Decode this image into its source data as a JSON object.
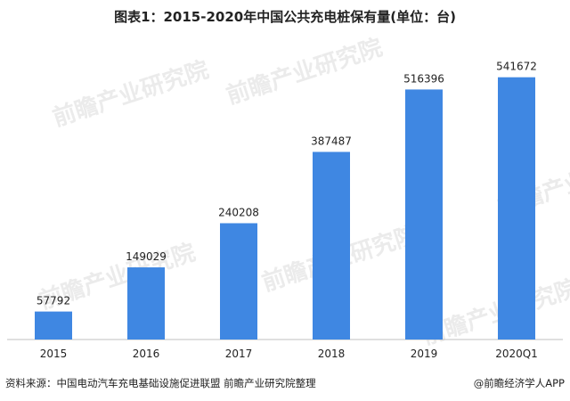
{
  "header": {
    "title": "图表1：2015-2020年中国公共充电桩保有量(单位：台)"
  },
  "watermark": {
    "text": "前瞻产业研究院"
  },
  "footer": {
    "source": "资料来源：中国电动汽车充电基础设施促进联盟 前瞻产业研究院整理",
    "credit": "@前瞻经济学人APP"
  },
  "colors": {
    "bar": "#3f87e2",
    "axis": "#bfbfbf",
    "label": "#222222"
  },
  "chart_data": {
    "type": "bar",
    "title": "图表1：2015-2020年中国公共充电桩保有量(单位：台)",
    "xlabel": "",
    "ylabel": "",
    "categories": [
      "2015",
      "2016",
      "2017",
      "2018",
      "2019",
      "2020Q1"
    ],
    "values": [
      57792,
      149029,
      240208,
      387487,
      516396,
      541672
    ],
    "ylim": [
      0,
      600000
    ],
    "grid": false,
    "legend": "none"
  }
}
